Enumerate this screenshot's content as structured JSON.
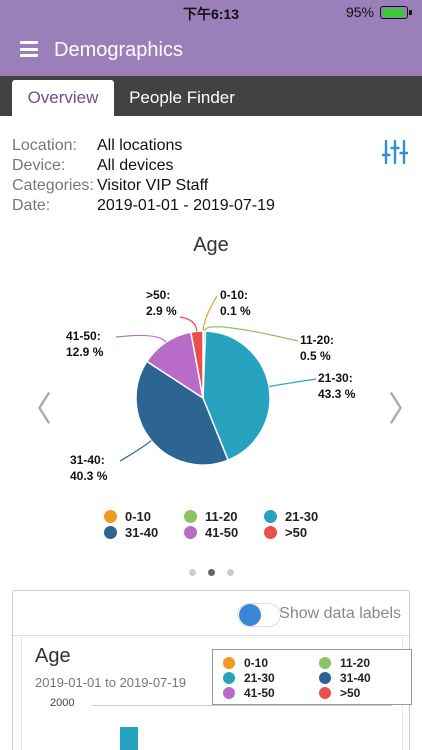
{
  "status_bar": {
    "time": "下午6:13",
    "battery": "95%"
  },
  "app_bar": {
    "title": "Demographics",
    "menu_icon": "hamburger-menu-icon"
  },
  "tabs": [
    {
      "label": "Overview",
      "active": true
    },
    {
      "label": "People Finder",
      "active": false
    }
  ],
  "filters": [
    {
      "label": "Location:",
      "value": "All locations"
    },
    {
      "label": "Device:",
      "value": "All devices"
    },
    {
      "label": "Categories:",
      "value": "Visitor VIP Staff"
    },
    {
      "label": "Date:",
      "value": "2019-01-01 - 2019-07-19"
    }
  ],
  "filter_icon": "sliders-icon",
  "pie": {
    "title": "Age",
    "labels": [
      {
        "line1": "0-10:",
        "line2": "0.1 %"
      },
      {
        "line1": "11-20:",
        "line2": "0.5 %"
      },
      {
        "line1": "21-30:",
        "line2": "43.3 %"
      },
      {
        "line1": "31-40:",
        "line2": "40.3 %"
      },
      {
        "line1": "41-50:",
        "line2": "12.9 %"
      },
      {
        "line1": ">50:",
        "line2": "2.9 %"
      }
    ],
    "legend": [
      "0-10",
      "11-20",
      "21-30",
      "31-40",
      "41-50",
      ">50"
    ],
    "prev_arrow": "〈",
    "next_arrow": "〉"
  },
  "chart_data": [
    {
      "type": "pie",
      "title": "Age",
      "categories": [
        "0-10",
        "11-20",
        "21-30",
        "31-40",
        "41-50",
        ">50"
      ],
      "values": [
        0.1,
        0.5,
        43.3,
        40.3,
        12.9,
        2.9
      ],
      "colors": [
        "#f09a1e",
        "#8cc261",
        "#27a3c0",
        "#2d6592",
        "#b96bc8",
        "#ec4d4d"
      ],
      "legend": "bottom"
    },
    {
      "type": "bar",
      "title": "Age",
      "subtitle": "2019-01-01 to 2019-07-19",
      "categories": [
        "0-10",
        "11-20",
        "21-30",
        "31-40",
        "41-50",
        ">50"
      ],
      "y_ticks": [
        "2000"
      ],
      "visible_bars": [
        {
          "category": "21-30",
          "color": "#27a3c0"
        }
      ],
      "legend": "top-right"
    }
  ],
  "pager": {
    "count": 3,
    "active": 1
  },
  "card": {
    "toggle_label": "Show data labels",
    "toggle_on": true,
    "bar_title": "Age",
    "bar_subtitle": "2019-01-01 to 2019-07-19",
    "y_tick": "2000",
    "legend": [
      "0-10",
      "11-20",
      "21-30",
      "31-40",
      "41-50",
      ">50"
    ]
  }
}
